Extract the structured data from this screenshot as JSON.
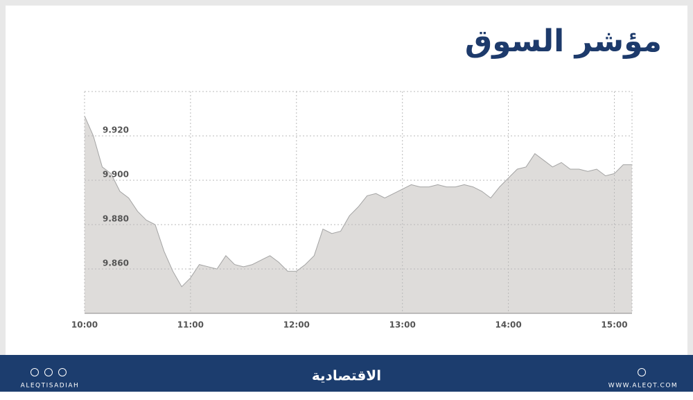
{
  "chart_data": {
    "type": "area",
    "title": "مؤشر السوق",
    "x": [
      "10:00",
      "10:05",
      "10:10",
      "10:15",
      "10:20",
      "10:25",
      "10:30",
      "10:35",
      "10:40",
      "10:45",
      "10:50",
      "10:55",
      "11:00",
      "11:05",
      "11:10",
      "11:15",
      "11:20",
      "11:25",
      "11:30",
      "11:35",
      "11:40",
      "11:45",
      "11:50",
      "11:55",
      "12:00",
      "12:05",
      "12:10",
      "12:15",
      "12:20",
      "12:25",
      "12:30",
      "12:35",
      "12:40",
      "12:45",
      "12:50",
      "12:55",
      "13:00",
      "13:05",
      "13:10",
      "13:15",
      "13:20",
      "13:25",
      "13:30",
      "13:35",
      "13:40",
      "13:45",
      "13:50",
      "13:55",
      "14:00",
      "14:05",
      "14:10",
      "14:15",
      "14:20",
      "14:25",
      "14:30",
      "14:35",
      "14:40",
      "14:45",
      "14:50",
      "14:55",
      "15:00",
      "15:05",
      "15:10"
    ],
    "values": [
      9.929,
      9.92,
      9.906,
      9.903,
      9.895,
      9.892,
      9.886,
      9.882,
      9.88,
      9.868,
      9.859,
      9.852,
      9.856,
      9.862,
      9.861,
      9.86,
      9.866,
      9.862,
      9.861,
      9.862,
      9.864,
      9.866,
      9.863,
      9.859,
      9.859,
      9.862,
      9.866,
      9.878,
      9.876,
      9.877,
      9.884,
      9.888,
      9.893,
      9.894,
      9.892,
      9.894,
      9.896,
      9.898,
      9.897,
      9.897,
      9.898,
      9.897,
      9.897,
      9.898,
      9.897,
      9.895,
      9.892,
      9.897,
      9.901,
      9.905,
      9.906,
      9.912,
      9.909,
      9.906,
      9.908,
      9.905,
      9.905,
      9.904,
      9.905,
      9.902,
      9.903,
      9.907,
      9.907
    ],
    "color": "#dedcda",
    "line_color": "#a3a3a3",
    "xlim": [
      "10:00",
      "15:10"
    ],
    "xticks": [
      "10:00",
      "11:00",
      "12:00",
      "13:00",
      "14:00",
      "15:00"
    ],
    "ylim": [
      9.84,
      9.94
    ],
    "yticks": [
      {
        "value": 9.86,
        "label": "9.860"
      },
      {
        "value": 9.88,
        "label": "9.880"
      },
      {
        "value": 9.9,
        "label": "9.900"
      },
      {
        "value": 9.92,
        "label": "9.920"
      }
    ],
    "grid": true
  },
  "footer": {
    "left": "ALEQTISADIAH",
    "logo": "الاقتصادية",
    "right": "WWW.ALEQT.COM"
  }
}
